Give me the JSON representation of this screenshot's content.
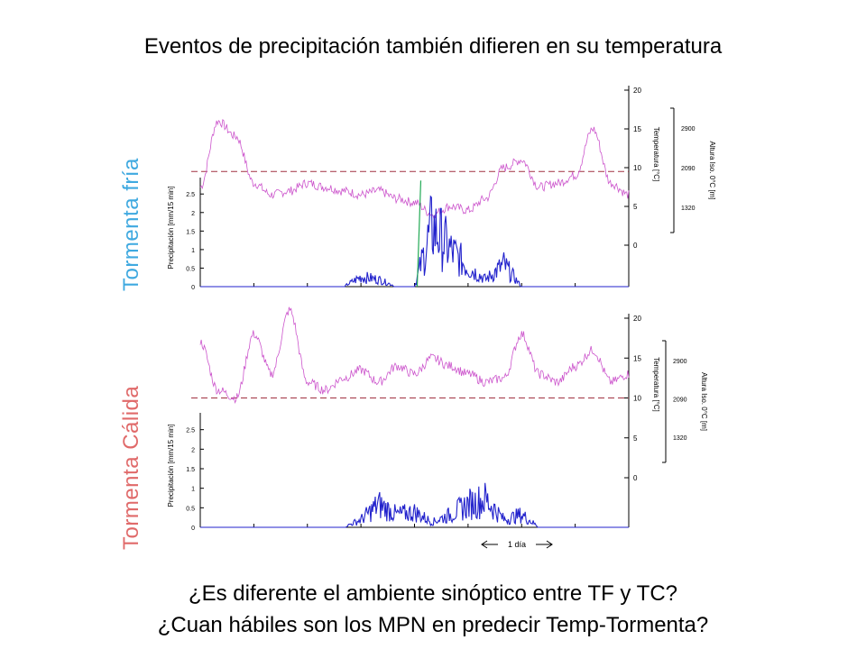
{
  "slide": {
    "title": "Eventos de precipitación también difieren en su temperatura",
    "question_1": "¿Es diferente el ambiente sinóptico entre TF y TC?",
    "question_2": "¿Cuan hábiles son los MPN en predecir Temp-Tormenta?",
    "scale_label": "1 día"
  },
  "colors": {
    "cold_label": "#3fa9e0",
    "warm_label": "#e06a6a",
    "temperature": "#cc55cc",
    "precipitation": "#2222cc",
    "threshold": "#a03040",
    "green_marker": "#22aa55"
  },
  "chart_data": [
    {
      "type": "line",
      "panel_label": "Tormenta fría",
      "ylabel_precip": "Precipitación [mm/15 min]",
      "ylabel_temp": "Temperatura [°C]",
      "ylabel_iso": "Altura Iso. 0°C [m]",
      "precip_ticks": [
        "0",
        "0.5",
        "1",
        "1.5",
        "2",
        "2.5"
      ],
      "temp_ticks": [
        "0",
        "5",
        "10",
        "15",
        "20"
      ],
      "iso_ticks": [
        "1320",
        "2090",
        "2900"
      ],
      "precip_ylim": [
        0,
        2.7
      ],
      "temp_ylim": [
        0,
        20
      ],
      "threshold_temp": 9.5,
      "x_days": [
        0,
        0.33,
        0.67,
        1.0,
        1.33,
        1.67,
        2.0,
        2.33,
        2.67,
        3.0,
        3.33,
        3.67,
        4.0,
        4.33,
        4.67,
        5.0,
        5.33,
        5.67,
        6.0,
        6.33,
        6.67,
        7.0,
        7.33,
        7.67,
        8.0
      ],
      "temperature": [
        7.5,
        16,
        14,
        8,
        6.5,
        7,
        8,
        7.5,
        7,
        6.5,
        7,
        6,
        5.5,
        4,
        5,
        4.5,
        6,
        10,
        11,
        7.5,
        8,
        9,
        15,
        8,
        6.5
      ],
      "precipitation": [
        0,
        0,
        0,
        0,
        0,
        0,
        0,
        0,
        0,
        0.4,
        0.3,
        0,
        0,
        2.5,
        1.5,
        0.8,
        0.3,
        0.9,
        0,
        0,
        0,
        0,
        0,
        0,
        0
      ],
      "green_marker_x_day": 4.05
    },
    {
      "type": "line",
      "panel_label": "Tormenta Cálida",
      "ylabel_precip": "Precipitación [mm/15 min]",
      "ylabel_temp": "Temperatura [°C]",
      "ylabel_iso": "Altura Iso. 0°C [m]",
      "precip_ticks": [
        "0",
        "0.5",
        "1",
        "1.5",
        "2",
        "2.5"
      ],
      "temp_ticks": [
        "0",
        "5",
        "10",
        "15",
        "20"
      ],
      "iso_ticks": [
        "1320",
        "2090",
        "2900"
      ],
      "precip_ylim": [
        0,
        2.7
      ],
      "temp_ylim": [
        0,
        20
      ],
      "threshold_temp": 10,
      "x_days": [
        0,
        0.33,
        0.67,
        1.0,
        1.33,
        1.67,
        2.0,
        2.33,
        2.67,
        3.0,
        3.33,
        3.67,
        4.0,
        4.33,
        4.67,
        5.0,
        5.33,
        5.67,
        6.0,
        6.33,
        6.67,
        7.0,
        7.33,
        7.67,
        8.0
      ],
      "temperature": [
        17,
        11,
        10,
        18,
        13,
        21,
        12,
        11,
        12.5,
        13.5,
        12,
        14,
        13,
        15,
        14,
        13,
        12,
        12.5,
        18,
        13,
        12,
        14,
        16,
        12,
        13
      ],
      "precipitation": [
        0,
        0,
        0,
        0,
        0,
        0,
        0,
        0,
        0,
        0.3,
        0.9,
        0.5,
        0.6,
        0.2,
        0.5,
        0.9,
        1.1,
        0.3,
        0.5,
        0,
        0,
        0,
        0,
        0,
        0
      ]
    }
  ]
}
